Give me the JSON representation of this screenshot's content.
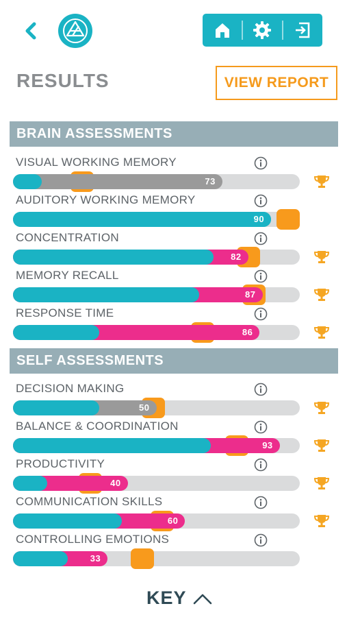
{
  "header": {
    "back_icon": "chevron-left-icon",
    "logo_icon": "triangle-logo-icon",
    "nav": [
      {
        "icon": "home-icon"
      },
      {
        "icon": "gear-icon"
      },
      {
        "icon": "logout-icon"
      }
    ]
  },
  "page": {
    "title": "RESULTS",
    "view_report_label": "VIEW REPORT"
  },
  "colors": {
    "teal": "#1ab3c4",
    "pink": "#ec2d8c",
    "gray": "#9a9a9a",
    "track": "#dadbdc",
    "orange": "#f89a1c",
    "section": "#97aeb6"
  },
  "sections": [
    {
      "title": "BRAIN ASSESSMENTS",
      "metrics": [
        {
          "label": "VISUAL WORKING MEMORY",
          "value": 73,
          "value_label": "73",
          "teal_end": 10,
          "fill_color": "gray",
          "marker_at": 24,
          "trophy": true
        },
        {
          "label": "AUDITORY WORKING MEMORY",
          "value": 90,
          "value_label": "90",
          "teal_end": 90,
          "fill_color": "teal",
          "marker_at": 96,
          "trophy": false
        },
        {
          "label": "CONCENTRATION",
          "value": 82,
          "value_label": "82",
          "teal_end": 70,
          "fill_color": "pink",
          "marker_at": 82,
          "trophy": true
        },
        {
          "label": "MEMORY RECALL",
          "value": 87,
          "value_label": "87",
          "teal_end": 65,
          "fill_color": "pink",
          "marker_at": 84,
          "trophy": true
        },
        {
          "label": "RESPONSE TIME",
          "value": 86,
          "value_label": "86",
          "teal_end": 30,
          "fill_color": "pink",
          "marker_at": 66,
          "trophy": true
        }
      ]
    },
    {
      "title": "SELF ASSESSMENTS",
      "metrics": [
        {
          "label": "DECISION MAKING",
          "value": 50,
          "value_label": "50",
          "teal_end": 30,
          "fill_color": "gray",
          "marker_at": 49,
          "trophy": true
        },
        {
          "label": "BALANCE & COORDINATION",
          "value": 93,
          "value_label": "93",
          "teal_end": 69,
          "fill_color": "pink",
          "marker_at": 78,
          "trophy": true
        },
        {
          "label": "PRODUCTIVITY",
          "value": 40,
          "value_label": "40",
          "teal_end": 12,
          "fill_color": "pink",
          "marker_at": 27,
          "trophy": true
        },
        {
          "label": "COMMUNICATION SKILLS",
          "value": 60,
          "value_label": "60",
          "teal_end": 38,
          "fill_color": "pink",
          "marker_at": 52,
          "trophy": true
        },
        {
          "label": "CONTROLLING EMOTIONS",
          "value": 33,
          "value_label": "33",
          "teal_end": 19,
          "fill_color": "pink",
          "marker_at": 45,
          "trophy": false
        }
      ]
    }
  ],
  "footer": {
    "key_label": "KEY",
    "key_icon": "chevron-up-icon"
  }
}
